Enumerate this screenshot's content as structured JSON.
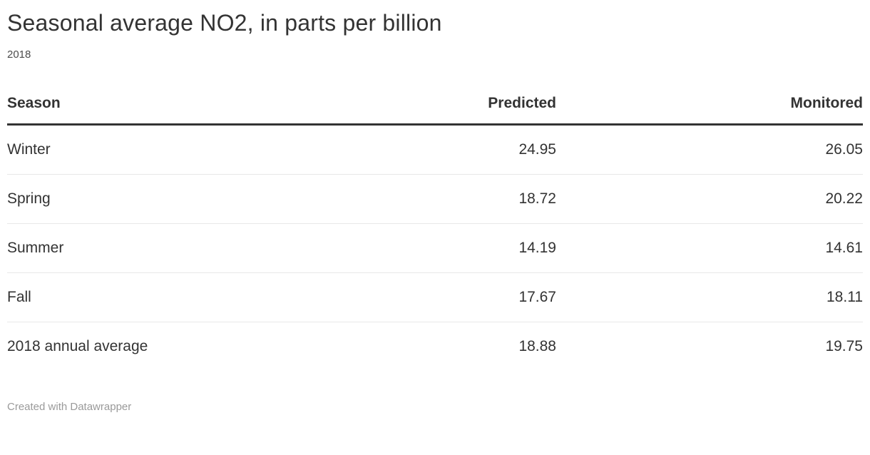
{
  "title": "Seasonal average NO2, in parts per billion",
  "subtitle": "2018",
  "footer": {
    "credit_label": "Created with Datawrapper"
  },
  "table": {
    "headers": [
      "Season",
      "Predicted",
      "Monitored"
    ],
    "rows": [
      [
        "Winter",
        "24.95",
        "26.05"
      ],
      [
        "Spring",
        "18.72",
        "20.22"
      ],
      [
        "Summer",
        "14.19",
        "14.61"
      ],
      [
        "Fall",
        "17.67",
        "18.11"
      ],
      [
        "2018 annual average",
        "18.88",
        "19.75"
      ]
    ]
  },
  "colors": {
    "text": "#333333",
    "header_border": "#333333",
    "row_divider": "#e8e8e8",
    "footer_text": "#9a9a9a",
    "background": "#ffffff"
  },
  "chart_data": {
    "type": "table",
    "title": "Seasonal average NO2, in parts per billion",
    "subtitle": "2018",
    "columns": [
      "Season",
      "Predicted",
      "Monitored"
    ],
    "rows": [
      {
        "season": "Winter",
        "predicted": 24.95,
        "monitored": 26.05
      },
      {
        "season": "Spring",
        "predicted": 18.72,
        "monitored": 20.22
      },
      {
        "season": "Summer",
        "predicted": 14.19,
        "monitored": 14.61
      },
      {
        "season": "Fall",
        "predicted": 17.67,
        "monitored": 18.11
      },
      {
        "season": "2018 annual average",
        "predicted": 18.88,
        "monitored": 19.75
      }
    ]
  }
}
